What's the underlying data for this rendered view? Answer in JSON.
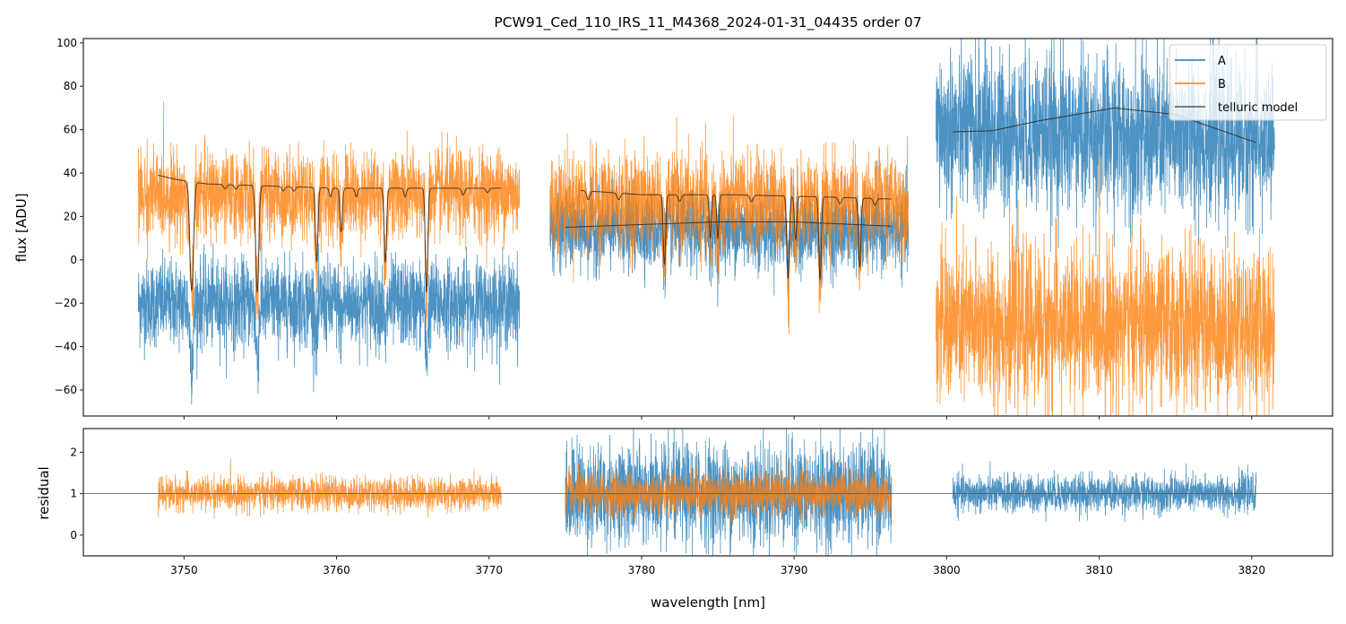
{
  "chart_data": [
    {
      "type": "line",
      "title": "PCW91_Ced_110_IRS_11_M4368_2024-01-31_04435  order 07",
      "xlabel": "",
      "ylabel": "flux [ADU]",
      "xlim": [
        3743.4,
        3825.3
      ],
      "ylim": [
        -72,
        102
      ],
      "xticks": [
        3750,
        3760,
        3770,
        3780,
        3790,
        3800,
        3810,
        3820
      ],
      "yticks": [
        -60,
        -40,
        -20,
        0,
        20,
        40,
        60,
        80,
        100
      ],
      "ytick_labels": [
        "−60",
        "−40",
        "−20",
        "0",
        "20",
        "40",
        "60",
        "80",
        "100"
      ],
      "legend": {
        "placement": "top-right",
        "entries": [
          "A",
          "B",
          "telluric model"
        ]
      },
      "colors": {
        "A": "#1f77b4",
        "B": "#ff7f0e",
        "model": "#333333"
      },
      "series": [
        {
          "name": "A",
          "segments": [
            {
              "range": [
                3747.0,
                3772.0
              ],
              "level": [
                -20,
                -20
              ],
              "noise": 10,
              "line_scale": 0.5
            },
            {
              "range": [
                3774.0,
                3797.5
              ],
              "level": [
                14,
                14
              ],
              "noise": 9,
              "line_scale": 0.3
            },
            {
              "range": [
                3799.3,
                3821.5
              ],
              "level": [
                60,
                55
              ],
              "noise": 18,
              "line_scale": 0
            }
          ]
        },
        {
          "name": "B",
          "segments": [
            {
              "range": [
                3747.0,
                3772.0
              ],
              "level": [
                30,
                31
              ],
              "noise": 10,
              "line_scale": 1
            },
            {
              "range": [
                3774.0,
                3797.5
              ],
              "level": [
                27,
                27
              ],
              "noise": 11,
              "line_scale": 1
            },
            {
              "range": [
                3799.3,
                3821.5
              ],
              "level": [
                -30,
                -30
              ],
              "noise": 18,
              "line_scale": 0
            }
          ]
        },
        {
          "name": "telluric model",
          "segments": [
            {
              "range": [
                3748.3,
                3770.8
              ],
              "continuum": [
                [
                  3748.3,
                  39
                ],
                [
                  3749.5,
                  37
                ],
                [
                  3751.5,
                  35
                ],
                [
                  3760,
                  33
                ],
                [
                  3770.8,
                  33
                ]
              ],
              "lines": [
                [
                  3750.5,
                  50,
                  0.12
                ],
                [
                  3752.7,
                  2,
                  0.1
                ],
                [
                  3753.4,
                  2,
                  0.1
                ],
                [
                  3754.8,
                  49,
                  0.1
                ],
                [
                  3756.5,
                  2,
                  0.1
                ],
                [
                  3757.2,
                  2,
                  0.1
                ],
                [
                  3758.7,
                  34,
                  0.08
                ],
                [
                  3759.6,
                  4,
                  0.08
                ],
                [
                  3760.3,
                  20,
                  0.08
                ],
                [
                  3761.3,
                  4,
                  0.08
                ],
                [
                  3763.2,
                  34,
                  0.08
                ],
                [
                  3764.5,
                  4,
                  0.08
                ],
                [
                  3765.9,
                  48,
                  0.08
                ],
                [
                  3768.3,
                  3,
                  0.1
                ],
                [
                  3769.9,
                  2,
                  0.1
                ]
              ]
            },
            {
              "range": [
                3776.0,
                3796.4
              ],
              "continuum": [
                [
                  3776.0,
                  32
                ],
                [
                  3780,
                  30
                ],
                [
                  3786,
                  30
                ],
                [
                  3792,
                  29
                ],
                [
                  3796.4,
                  28
                ]
              ],
              "lines": [
                [
                  3776.5,
                  4,
                  0.1
                ],
                [
                  3778.5,
                  3,
                  0.1
                ],
                [
                  3781.5,
                  32,
                  0.08
                ],
                [
                  3782.5,
                  3,
                  0.1
                ],
                [
                  3784.5,
                  20,
                  0.07
                ],
                [
                  3785.0,
                  20,
                  0.07
                ],
                [
                  3787.2,
                  3,
                  0.1
                ],
                [
                  3789.6,
                  38,
                  0.08
                ],
                [
                  3790.1,
                  20,
                  0.08
                ],
                [
                  3791.7,
                  38,
                  0.08
                ],
                [
                  3793.0,
                  3,
                  0.1
                ],
                [
                  3794.3,
                  32,
                  0.08
                ],
                [
                  3795.3,
                  3,
                  0.1
                ]
              ]
            },
            {
              "range": [
                3775.0,
                3796.4
              ],
              "continuum": [
                [
                  3775.0,
                  15
                ],
                [
                  3785,
                  17.5
                ],
                [
                  3790,
                  17.5
                ],
                [
                  3796.4,
                  15.5
                ]
              ],
              "lines": []
            },
            {
              "range": [
                3800.4,
                3820.3
              ],
              "continuum": [
                [
                  3800.4,
                  59
                ],
                [
                  3803,
                  59.5
                ],
                [
                  3806,
                  64
                ],
                [
                  3811,
                  70
                ],
                [
                  3815,
                  67
                ],
                [
                  3820.3,
                  54
                ]
              ],
              "lines": []
            }
          ]
        }
      ]
    },
    {
      "type": "line",
      "xlabel": "wavelength [nm]",
      "ylabel": "residual",
      "xlim": [
        3743.4,
        3825.3
      ],
      "ylim": [
        -0.5,
        2.57
      ],
      "xticks": [
        3750,
        3760,
        3770,
        3780,
        3790,
        3800,
        3810,
        3820
      ],
      "yticks": [
        0,
        1,
        2
      ],
      "reference_line": 1,
      "series": [
        {
          "name": "A",
          "segments": [
            {
              "range": [
                3775.0,
                3796.4
              ],
              "level": 1,
              "noise": 0.6
            },
            {
              "range": [
                3800.4,
                3820.3
              ],
              "level": 1,
              "noise": 0.22
            }
          ]
        },
        {
          "name": "B",
          "segments": [
            {
              "range": [
                3748.3,
                3770.8
              ],
              "level": 1,
              "noise": 0.2
            },
            {
              "range": [
                3775.0,
                3796.4
              ],
              "level": 1,
              "noise": 0.25
            }
          ]
        }
      ]
    }
  ]
}
